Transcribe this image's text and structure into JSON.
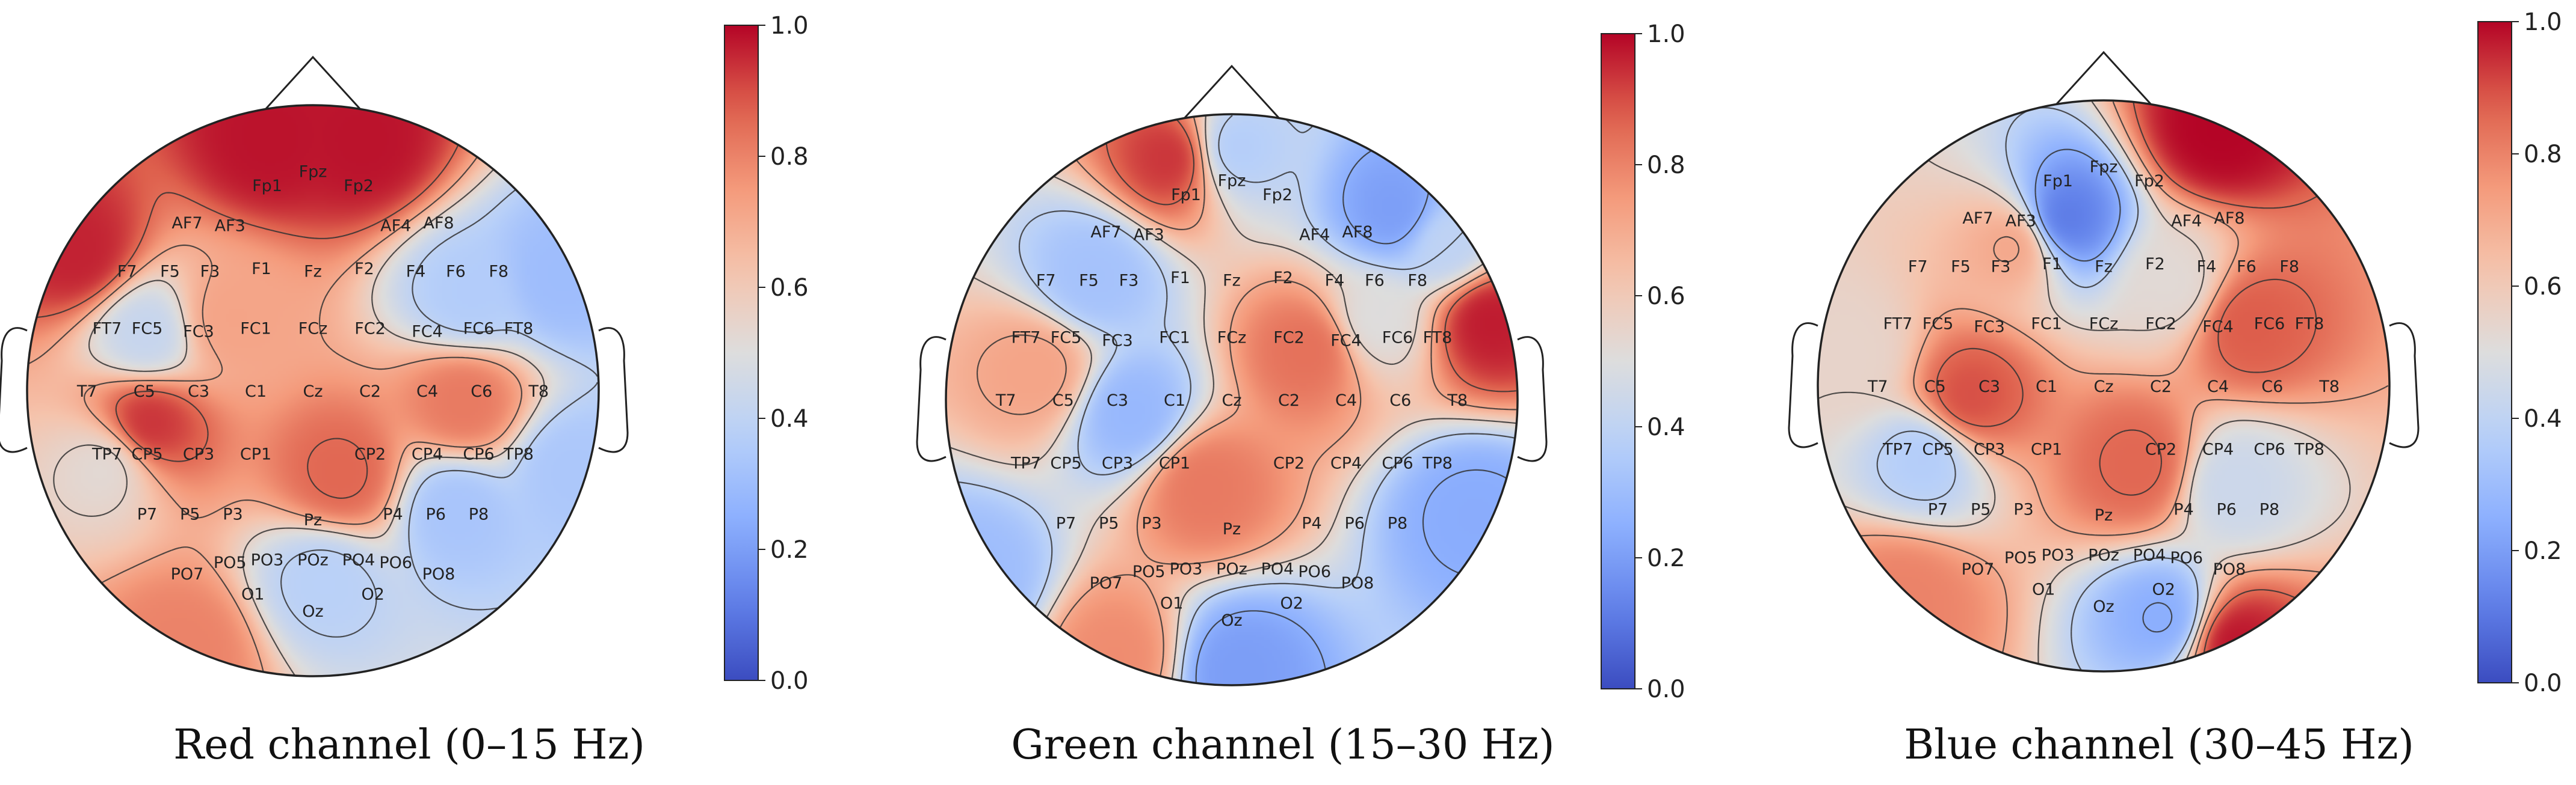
{
  "chart_data": [
    {
      "type": "heatmap",
      "subtype": "eeg-topomap",
      "caption": "Red channel (0–15 Hz)",
      "colormap": "coolwarm",
      "colorbar": {
        "min": 0.0,
        "max": 1.0,
        "ticks": [
          "0.0",
          "0.2",
          "0.4",
          "0.6",
          "0.8",
          "1.0"
        ]
      },
      "hotspots": [
        {
          "pos": [
            -0.15,
            0.88
          ],
          "value": 0.98
        },
        {
          "pos": [
            0.18,
            0.87
          ],
          "value": 0.98
        },
        {
          "pos": [
            -0.82,
            0.48
          ],
          "value": 0.96
        },
        {
          "pos": [
            -0.58,
            -0.12
          ],
          "value": 0.94
        },
        {
          "pos": [
            0.1,
            -0.3
          ],
          "value": 0.86
        },
        {
          "pos": [
            0.53,
            -0.04
          ],
          "value": 0.82
        },
        {
          "pos": [
            -0.45,
            -0.9
          ],
          "value": 0.8
        },
        {
          "pos": [
            -0.3,
            0.25
          ],
          "value": 0.72
        },
        {
          "pos": [
            -0.58,
            0.2
          ],
          "value": 0.42
        },
        {
          "pos": [
            0.55,
            0.33
          ],
          "value": 0.36
        },
        {
          "pos": [
            0.86,
            0.4
          ],
          "value": 0.3
        },
        {
          "pos": [
            0.5,
            -0.42
          ],
          "value": 0.33
        },
        {
          "pos": [
            0.04,
            -0.66
          ],
          "value": 0.38
        },
        {
          "pos": [
            0.9,
            -0.28
          ],
          "value": 0.34
        },
        {
          "pos": [
            -0.72,
            -0.26
          ],
          "value": 0.52
        }
      ]
    },
    {
      "type": "heatmap",
      "subtype": "eeg-topomap",
      "caption": "Green channel (15–30 Hz)",
      "colormap": "coolwarm",
      "colorbar": {
        "min": 0.0,
        "max": 1.0,
        "ticks": [
          "0.0",
          "0.2",
          "0.4",
          "0.6",
          "0.8",
          "1.0"
        ]
      },
      "hotspots": [
        {
          "pos": [
            -0.2,
            0.85
          ],
          "value": 0.94
        },
        {
          "pos": [
            0.9,
            0.28
          ],
          "value": 0.97
        },
        {
          "pos": [
            0.28,
            0.18
          ],
          "value": 0.84
        },
        {
          "pos": [
            -0.1,
            -0.3
          ],
          "value": 0.82
        },
        {
          "pos": [
            -0.4,
            -0.9
          ],
          "value": 0.78
        },
        {
          "pos": [
            -0.68,
            0.1
          ],
          "value": 0.72
        },
        {
          "pos": [
            0.0,
            0.88
          ],
          "value": 0.36
        },
        {
          "pos": [
            0.58,
            0.66
          ],
          "value": 0.2
        },
        {
          "pos": [
            -0.48,
            0.43
          ],
          "value": 0.32
        },
        {
          "pos": [
            -0.35,
            -0.05
          ],
          "value": 0.28
        },
        {
          "pos": [
            0.85,
            -0.4
          ],
          "value": 0.24
        },
        {
          "pos": [
            0.02,
            -0.95
          ],
          "value": 0.2
        },
        {
          "pos": [
            -0.9,
            -0.62
          ],
          "value": 0.3
        },
        {
          "pos": [
            0.5,
            0.28
          ],
          "value": 0.5
        },
        {
          "pos": [
            0.75,
            0.55
          ],
          "value": 0.4
        }
      ]
    },
    {
      "type": "heatmap",
      "subtype": "eeg-topomap",
      "caption": "Blue channel (30–45 Hz)",
      "colormap": "coolwarm",
      "colorbar": {
        "min": 0.0,
        "max": 1.0,
        "ticks": [
          "0.0",
          "0.2",
          "0.4",
          "0.6",
          "0.8",
          "1.0"
        ]
      },
      "hotspots": [
        {
          "pos": [
            0.4,
            0.9
          ],
          "value": 1.0
        },
        {
          "pos": [
            0.45,
            -0.9
          ],
          "value": 0.98
        },
        {
          "pos": [
            -0.48,
            -0.05
          ],
          "value": 0.9
        },
        {
          "pos": [
            0.5,
            0.22
          ],
          "value": 0.88
        },
        {
          "pos": [
            0.13,
            -0.28
          ],
          "value": 0.86
        },
        {
          "pos": [
            -0.7,
            -0.75
          ],
          "value": 0.8
        },
        {
          "pos": [
            -0.3,
            0.5
          ],
          "value": 0.72
        },
        {
          "pos": [
            -0.15,
            0.58
          ],
          "value": 0.1
        },
        {
          "pos": [
            -0.62,
            -0.24
          ],
          "value": 0.36
        },
        {
          "pos": [
            0.22,
            -0.82
          ],
          "value": 0.24
        },
        {
          "pos": [
            0.45,
            -0.35
          ],
          "value": 0.44
        },
        {
          "pos": [
            0.25,
            0.35
          ],
          "value": 0.52
        },
        {
          "pos": [
            -0.88,
            0.1
          ],
          "value": 0.55
        }
      ]
    }
  ],
  "electrodes": [
    {
      "n": "Fp1",
      "p": [
        -0.16,
        0.72
      ]
    },
    {
      "n": "Fpz",
      "p": [
        0.0,
        0.77
      ]
    },
    {
      "n": "Fp2",
      "p": [
        0.16,
        0.72
      ]
    },
    {
      "n": "AF7",
      "p": [
        -0.44,
        0.59
      ]
    },
    {
      "n": "AF3",
      "p": [
        -0.29,
        0.58
      ]
    },
    {
      "n": "AF4",
      "p": [
        0.29,
        0.58
      ]
    },
    {
      "n": "AF8",
      "p": [
        0.44,
        0.59
      ]
    },
    {
      "n": "F7",
      "p": [
        -0.65,
        0.42
      ]
    },
    {
      "n": "F5",
      "p": [
        -0.5,
        0.42
      ]
    },
    {
      "n": "F3",
      "p": [
        -0.36,
        0.42
      ]
    },
    {
      "n": "F1",
      "p": [
        -0.18,
        0.43
      ]
    },
    {
      "n": "Fz",
      "p": [
        0.0,
        0.42
      ]
    },
    {
      "n": "F2",
      "p": [
        0.18,
        0.43
      ]
    },
    {
      "n": "F4",
      "p": [
        0.36,
        0.42
      ]
    },
    {
      "n": "F6",
      "p": [
        0.5,
        0.42
      ]
    },
    {
      "n": "F8",
      "p": [
        0.65,
        0.42
      ]
    },
    {
      "n": "FT7",
      "p": [
        -0.72,
        0.22
      ]
    },
    {
      "n": "FC5",
      "p": [
        -0.58,
        0.22
      ]
    },
    {
      "n": "FC3",
      "p": [
        -0.4,
        0.21
      ]
    },
    {
      "n": "FC1",
      "p": [
        -0.2,
        0.22
      ]
    },
    {
      "n": "FCz",
      "p": [
        0.0,
        0.22
      ]
    },
    {
      "n": "FC2",
      "p": [
        0.2,
        0.22
      ]
    },
    {
      "n": "FC4",
      "p": [
        0.4,
        0.21
      ]
    },
    {
      "n": "FC6",
      "p": [
        0.58,
        0.22
      ]
    },
    {
      "n": "FT8",
      "p": [
        0.72,
        0.22
      ]
    },
    {
      "n": "T7",
      "p": [
        -0.79,
        0.0
      ]
    },
    {
      "n": "C5",
      "p": [
        -0.59,
        0.0
      ]
    },
    {
      "n": "C3",
      "p": [
        -0.4,
        0.0
      ]
    },
    {
      "n": "C1",
      "p": [
        -0.2,
        0.0
      ]
    },
    {
      "n": "Cz",
      "p": [
        0.0,
        0.0
      ]
    },
    {
      "n": "C2",
      "p": [
        0.2,
        0.0
      ]
    },
    {
      "n": "C4",
      "p": [
        0.4,
        0.0
      ]
    },
    {
      "n": "C6",
      "p": [
        0.59,
        0.0
      ]
    },
    {
      "n": "T8",
      "p": [
        0.79,
        0.0
      ]
    },
    {
      "n": "TP7",
      "p": [
        -0.72,
        -0.22
      ]
    },
    {
      "n": "CP5",
      "p": [
        -0.58,
        -0.22
      ]
    },
    {
      "n": "CP3",
      "p": [
        -0.4,
        -0.22
      ]
    },
    {
      "n": "CP1",
      "p": [
        -0.2,
        -0.22
      ]
    },
    {
      "n": "CP2",
      "p": [
        0.2,
        -0.22
      ]
    },
    {
      "n": "CP4",
      "p": [
        0.4,
        -0.22
      ]
    },
    {
      "n": "CP6",
      "p": [
        0.58,
        -0.22
      ]
    },
    {
      "n": "TP8",
      "p": [
        0.72,
        -0.22
      ]
    },
    {
      "n": "P7",
      "p": [
        -0.58,
        -0.43
      ]
    },
    {
      "n": "P5",
      "p": [
        -0.43,
        -0.43
      ]
    },
    {
      "n": "P3",
      "p": [
        -0.28,
        -0.43
      ]
    },
    {
      "n": "Pz",
      "p": [
        0.0,
        -0.45
      ]
    },
    {
      "n": "P4",
      "p": [
        0.28,
        -0.43
      ]
    },
    {
      "n": "P6",
      "p": [
        0.43,
        -0.43
      ]
    },
    {
      "n": "P8",
      "p": [
        0.58,
        -0.43
      ]
    },
    {
      "n": "PO7",
      "p": [
        -0.44,
        -0.64
      ]
    },
    {
      "n": "PO5",
      "p": [
        -0.29,
        -0.6
      ]
    },
    {
      "n": "PO3",
      "p": [
        -0.16,
        -0.59
      ]
    },
    {
      "n": "POz",
      "p": [
        0.0,
        -0.59
      ]
    },
    {
      "n": "PO4",
      "p": [
        0.16,
        -0.59
      ]
    },
    {
      "n": "PO6",
      "p": [
        0.29,
        -0.6
      ]
    },
    {
      "n": "PO8",
      "p": [
        0.44,
        -0.64
      ]
    },
    {
      "n": "O1",
      "p": [
        -0.21,
        -0.71
      ]
    },
    {
      "n": "Oz",
      "p": [
        0.0,
        -0.77
      ]
    },
    {
      "n": "O2",
      "p": [
        0.21,
        -0.71
      ]
    }
  ]
}
